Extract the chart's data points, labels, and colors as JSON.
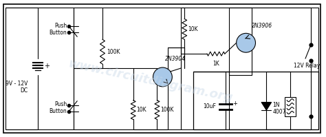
{
  "bg_color": "#ffffff",
  "line_color": "#000000",
  "component_fill": "#a8c8e8",
  "watermark_color": "#c8d8e8",
  "watermark_text": "www.circuitdiagram.org",
  "watermark_alpha": 0.45,
  "labels": {
    "voltage": "9V - 12V\nDC",
    "push_button_top": "Push\nButton",
    "push_button_bot": "Push\nButton",
    "r1": "100K",
    "r2": "10K",
    "r3": "100K",
    "r4": "10K",
    "r5": "1K",
    "c1": "10uF",
    "d1": "1N\n4007",
    "relay": "12V Relay",
    "q1": "2N3904",
    "q2": "2N3906"
  },
  "figsize": [
    4.74,
    1.99
  ],
  "dpi": 100,
  "border": [
    5,
    5,
    469,
    194
  ]
}
